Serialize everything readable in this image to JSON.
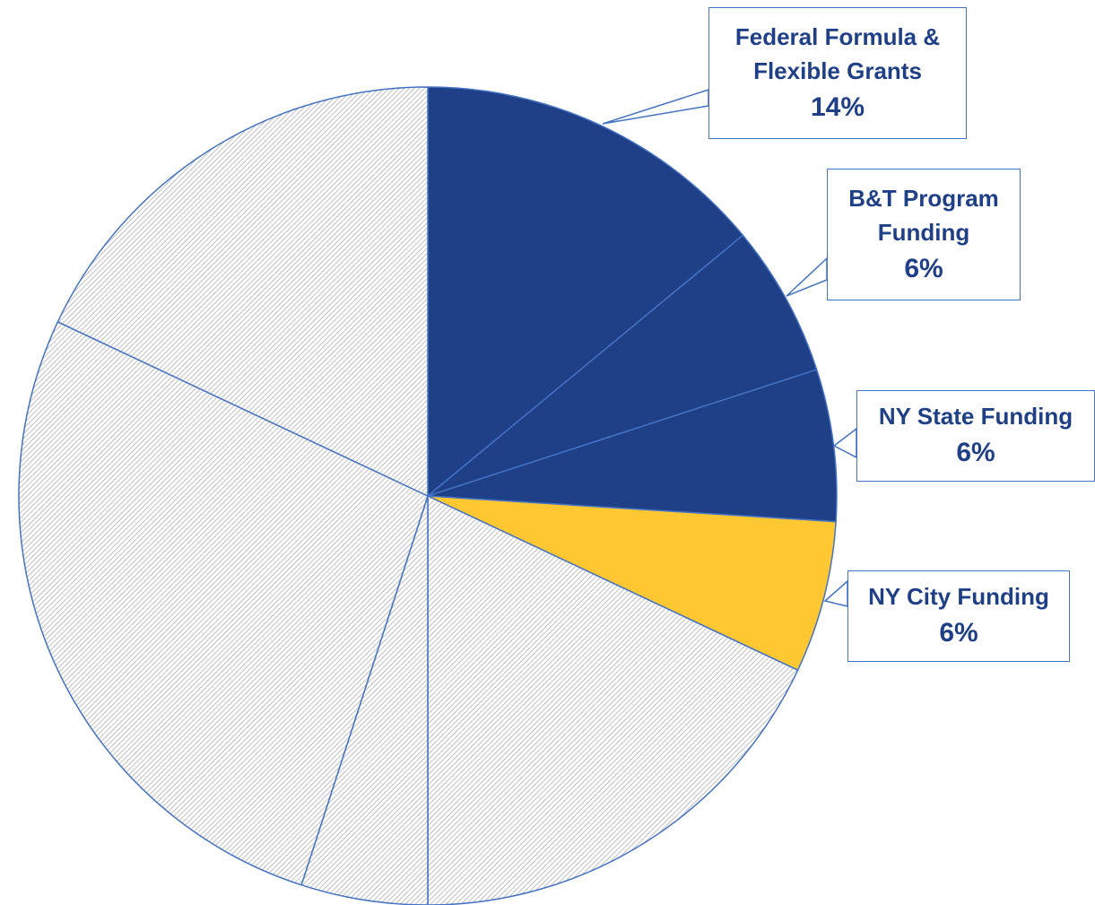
{
  "chart_data": {
    "type": "pie",
    "categories": [
      "Federal Formula & Flexible Grants",
      "B&T Program Funding",
      "NY State Funding",
      "NY City Funding",
      null,
      null,
      null,
      null
    ],
    "values": [
      14,
      6,
      6,
      6,
      18,
      5,
      27,
      18
    ],
    "value_labels": [
      "14%",
      "6%",
      "6%",
      "6%",
      null,
      null,
      null,
      null
    ],
    "colors": [
      "#1f3f86",
      "#1f3f86",
      "#1f3f86",
      "#ffc832",
      "#b0b0b0",
      "#b0b0b0",
      "#b0b0b0",
      "#b0b0b0"
    ],
    "hatched": [
      false,
      false,
      false,
      false,
      true,
      true,
      true,
      true
    ],
    "start_angle": 0,
    "direction": "clockwise"
  }
}
